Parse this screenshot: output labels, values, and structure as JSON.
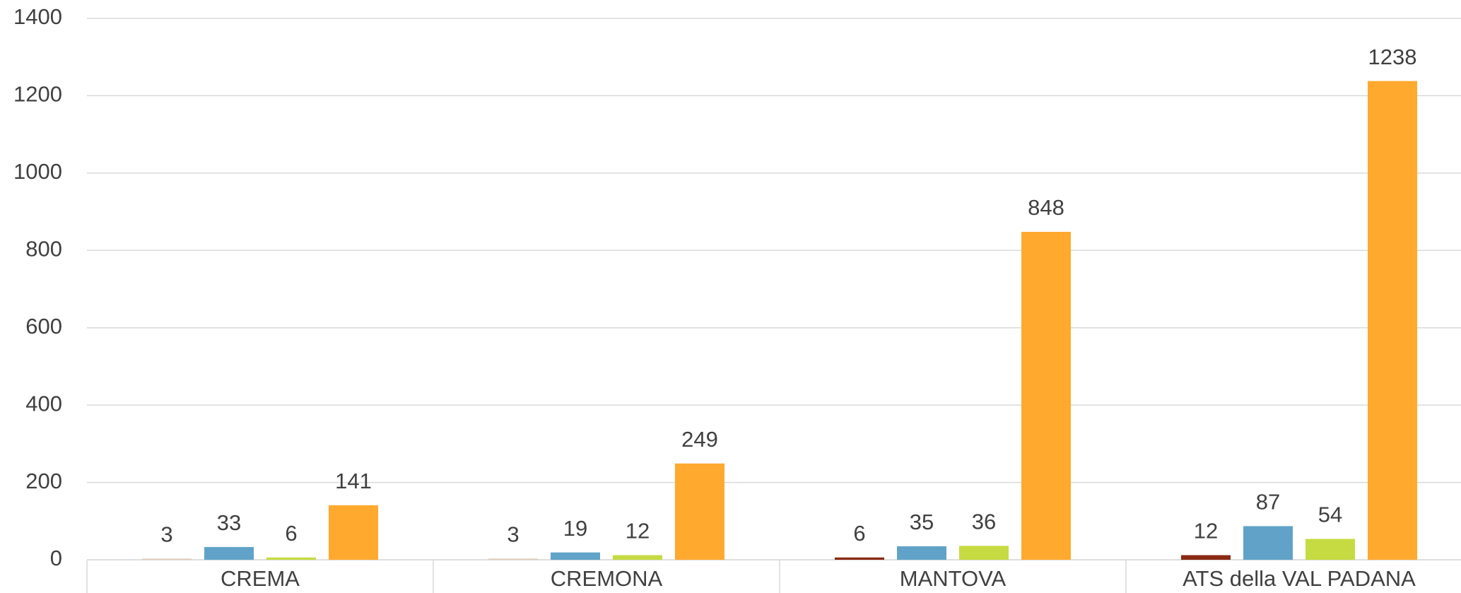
{
  "chart_data": {
    "type": "bar",
    "categories": [
      "CREMA",
      "CREMONA",
      "MANTOVA",
      "ATS della VAL PADANA"
    ],
    "series": [
      {
        "color": "#8b2a13",
        "colors": [
          "#e0cbb8",
          "#e0cbb8",
          "#8b2a13",
          "#8b2a13"
        ],
        "values": [
          3,
          3,
          6,
          12
        ]
      },
      {
        "color": "#61a3c8",
        "values": [
          33,
          19,
          35,
          87
        ]
      },
      {
        "color": "#c6db42",
        "values": [
          6,
          12,
          36,
          54
        ]
      },
      {
        "color": "#ffa92f",
        "values": [
          141,
          249,
          848,
          1238
        ]
      }
    ],
    "ylim": [
      0,
      1400
    ],
    "yticks": [
      0,
      200,
      400,
      600,
      800,
      1000,
      1200,
      1400
    ],
    "grid": true
  }
}
